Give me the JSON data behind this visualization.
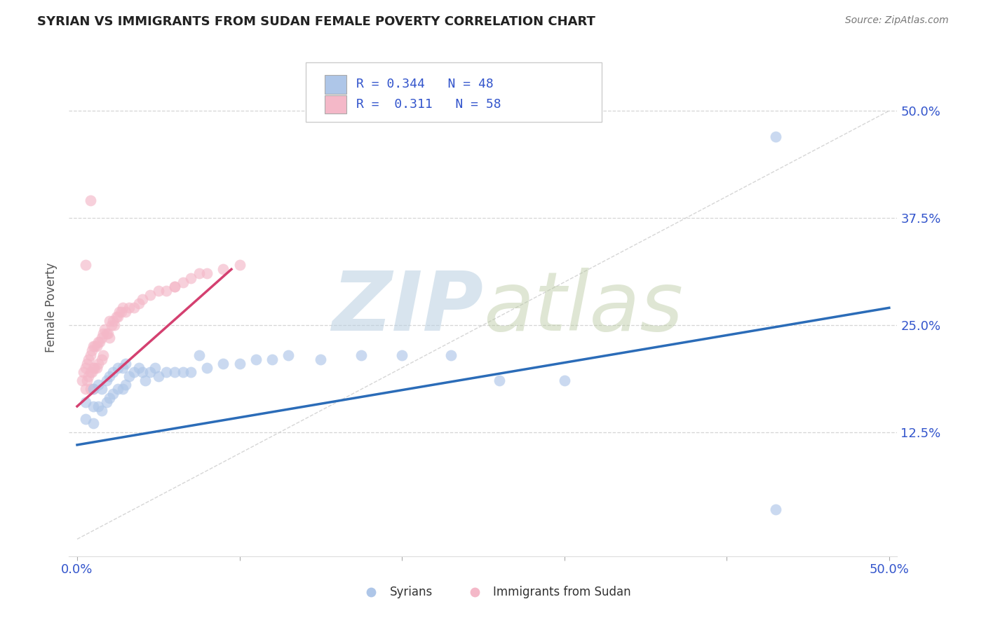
{
  "title": "SYRIAN VS IMMIGRANTS FROM SUDAN FEMALE POVERTY CORRELATION CHART",
  "source": "Source: ZipAtlas.com",
  "ylabel": "Female Poverty",
  "y_tick_labels": [
    "12.5%",
    "25.0%",
    "37.5%",
    "50.0%"
  ],
  "y_tick_values": [
    0.125,
    0.25,
    0.375,
    0.5
  ],
  "x_tick_labels": [
    "0.0%",
    "50.0%"
  ],
  "x_tick_values": [
    0.0,
    0.5
  ],
  "xlim": [
    -0.005,
    0.505
  ],
  "ylim": [
    -0.02,
    0.56
  ],
  "blue_color": "#aec6e8",
  "pink_color": "#f4b8c8",
  "line_blue": "#2b6cb8",
  "line_pink": "#d44070",
  "legend_label1": "Syrians",
  "legend_label2": "Immigrants from Sudan",
  "legend_r1_text": "R = 0.344   N = 48",
  "legend_r2_text": "R =  0.311   N = 58",
  "blue_scatter_x": [
    0.005,
    0.005,
    0.01,
    0.01,
    0.01,
    0.013,
    0.013,
    0.015,
    0.015,
    0.018,
    0.018,
    0.02,
    0.02,
    0.022,
    0.022,
    0.025,
    0.025,
    0.028,
    0.028,
    0.03,
    0.03,
    0.032,
    0.035,
    0.038,
    0.04,
    0.042,
    0.045,
    0.048,
    0.05,
    0.055,
    0.06,
    0.065,
    0.07,
    0.075,
    0.08,
    0.09,
    0.1,
    0.11,
    0.12,
    0.13,
    0.15,
    0.175,
    0.2,
    0.23,
    0.26,
    0.3,
    0.43,
    0.43
  ],
  "blue_scatter_y": [
    0.16,
    0.14,
    0.175,
    0.155,
    0.135,
    0.18,
    0.155,
    0.175,
    0.15,
    0.185,
    0.16,
    0.19,
    0.165,
    0.195,
    0.17,
    0.2,
    0.175,
    0.2,
    0.175,
    0.205,
    0.18,
    0.19,
    0.195,
    0.2,
    0.195,
    0.185,
    0.195,
    0.2,
    0.19,
    0.195,
    0.195,
    0.195,
    0.195,
    0.215,
    0.2,
    0.205,
    0.205,
    0.21,
    0.21,
    0.215,
    0.21,
    0.215,
    0.215,
    0.215,
    0.185,
    0.185,
    0.47,
    0.035
  ],
  "pink_scatter_x": [
    0.003,
    0.004,
    0.005,
    0.005,
    0.006,
    0.006,
    0.007,
    0.007,
    0.008,
    0.008,
    0.008,
    0.009,
    0.009,
    0.01,
    0.01,
    0.01,
    0.011,
    0.011,
    0.012,
    0.012,
    0.013,
    0.013,
    0.014,
    0.015,
    0.015,
    0.016,
    0.016,
    0.017,
    0.018,
    0.019,
    0.02,
    0.02,
    0.021,
    0.022,
    0.023,
    0.024,
    0.025,
    0.026,
    0.027,
    0.028,
    0.03,
    0.032,
    0.035,
    0.038,
    0.04,
    0.045,
    0.05,
    0.055,
    0.06,
    0.065,
    0.07,
    0.075,
    0.08,
    0.09,
    0.1,
    0.005,
    0.008,
    0.06
  ],
  "pink_scatter_y": [
    0.185,
    0.195,
    0.2,
    0.175,
    0.205,
    0.185,
    0.21,
    0.19,
    0.215,
    0.195,
    0.175,
    0.22,
    0.195,
    0.225,
    0.2,
    0.175,
    0.225,
    0.2,
    0.225,
    0.2,
    0.23,
    0.205,
    0.23,
    0.235,
    0.21,
    0.24,
    0.215,
    0.245,
    0.24,
    0.24,
    0.255,
    0.235,
    0.25,
    0.255,
    0.25,
    0.26,
    0.26,
    0.265,
    0.265,
    0.27,
    0.265,
    0.27,
    0.27,
    0.275,
    0.28,
    0.285,
    0.29,
    0.29,
    0.295,
    0.3,
    0.305,
    0.31,
    0.31,
    0.315,
    0.32,
    0.32,
    0.395,
    0.295
  ],
  "blue_line_x": [
    0.0,
    0.5
  ],
  "blue_line_y": [
    0.11,
    0.27
  ],
  "pink_line_x": [
    0.0,
    0.095
  ],
  "pink_line_y": [
    0.155,
    0.315
  ],
  "diag_line_x": [
    0.0,
    0.5
  ],
  "diag_line_y": [
    0.0,
    0.5
  ]
}
